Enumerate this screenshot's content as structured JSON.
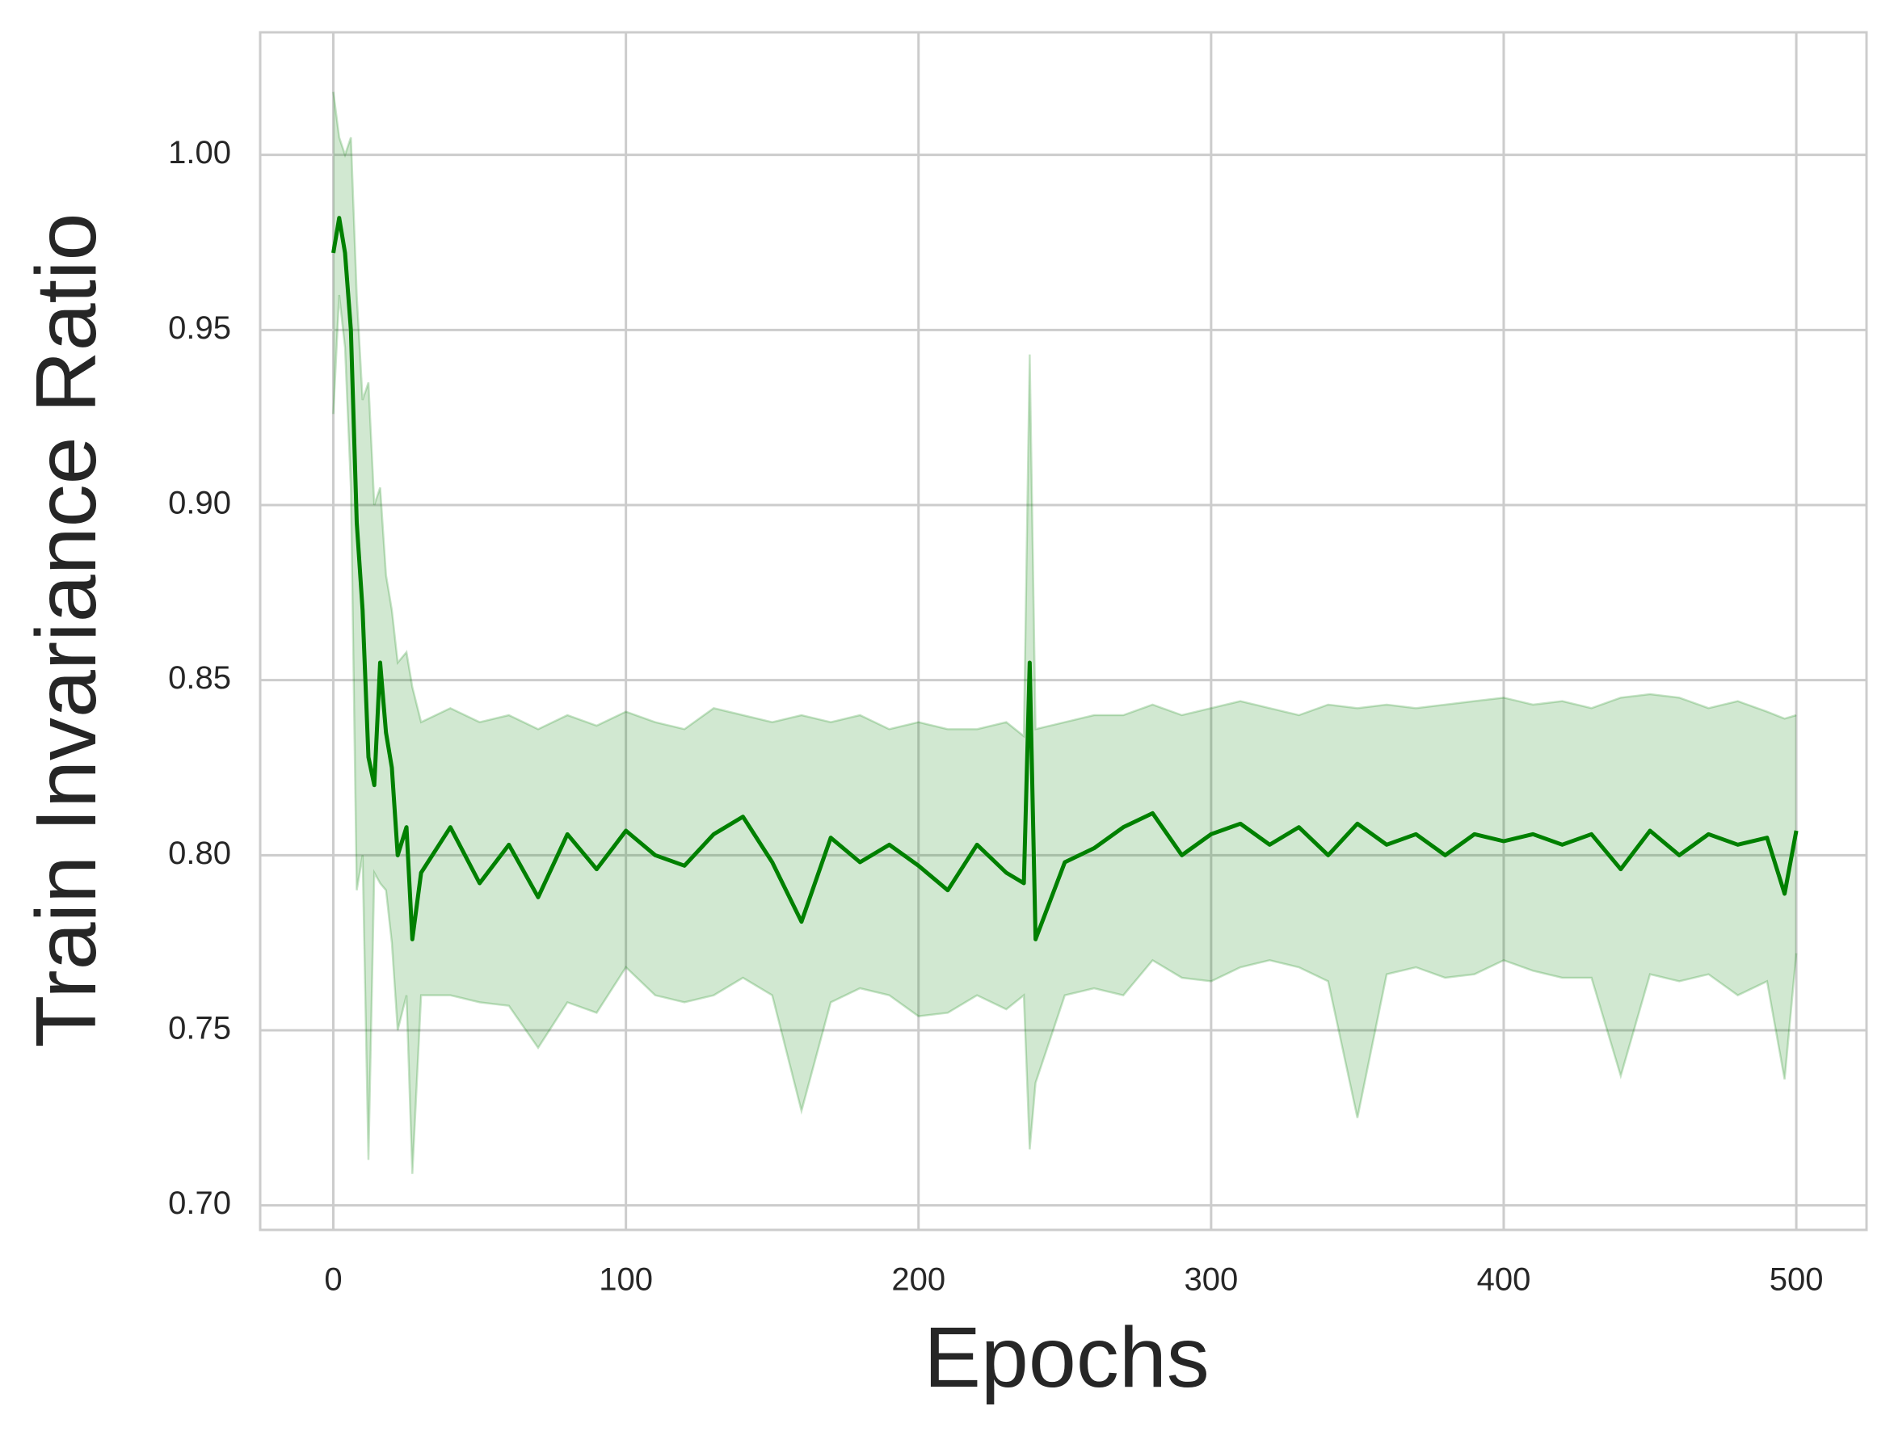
{
  "chart_data": {
    "type": "line",
    "xlabel": "Epochs",
    "ylabel": "Train Invariance Ratio",
    "x": [
      0,
      2,
      4,
      6,
      8,
      10,
      12,
      14,
      16,
      18,
      20,
      22,
      25,
      27,
      30,
      40,
      50,
      60,
      70,
      80,
      90,
      100,
      110,
      120,
      130,
      140,
      150,
      160,
      170,
      180,
      190,
      200,
      210,
      220,
      230,
      236,
      238,
      240,
      250,
      260,
      270,
      280,
      290,
      300,
      310,
      320,
      330,
      340,
      350,
      360,
      370,
      380,
      390,
      400,
      410,
      420,
      430,
      440,
      450,
      460,
      470,
      480,
      490,
      496,
      500
    ],
    "series": [
      {
        "color": "#008000",
        "values": [
          0.972,
          0.982,
          0.972,
          0.95,
          0.895,
          0.87,
          0.828,
          0.82,
          0.855,
          0.835,
          0.825,
          0.8,
          0.808,
          0.776,
          0.795,
          0.808,
          0.792,
          0.803,
          0.788,
          0.806,
          0.796,
          0.807,
          0.8,
          0.797,
          0.806,
          0.811,
          0.798,
          0.781,
          0.805,
          0.798,
          0.803,
          0.797,
          0.79,
          0.803,
          0.795,
          0.792,
          0.855,
          0.776,
          0.798,
          0.802,
          0.808,
          0.812,
          0.8,
          0.806,
          0.809,
          0.803,
          0.808,
          0.8,
          0.809,
          0.803,
          0.806,
          0.8,
          0.806,
          0.804,
          0.806,
          0.803,
          0.806,
          0.796,
          0.807,
          0.8,
          0.806,
          0.803,
          0.805,
          0.789,
          0.807
        ]
      }
    ],
    "band": {
      "color": "#008000",
      "upper": [
        1.018,
        1.005,
        1.0,
        1.005,
        0.96,
        0.93,
        0.935,
        0.9,
        0.905,
        0.88,
        0.87,
        0.855,
        0.858,
        0.848,
        0.838,
        0.842,
        0.838,
        0.84,
        0.836,
        0.84,
        0.837,
        0.841,
        0.838,
        0.836,
        0.842,
        0.84,
        0.838,
        0.84,
        0.838,
        0.84,
        0.836,
        0.838,
        0.836,
        0.836,
        0.838,
        0.834,
        0.943,
        0.836,
        0.838,
        0.84,
        0.84,
        0.843,
        0.84,
        0.842,
        0.844,
        0.842,
        0.84,
        0.843,
        0.842,
        0.843,
        0.842,
        0.843,
        0.844,
        0.845,
        0.843,
        0.844,
        0.842,
        0.845,
        0.846,
        0.845,
        0.842,
        0.844,
        0.841,
        0.839,
        0.84
      ],
      "lower": [
        0.926,
        0.96,
        0.945,
        0.905,
        0.79,
        0.8,
        0.713,
        0.795,
        0.792,
        0.79,
        0.775,
        0.75,
        0.76,
        0.709,
        0.76,
        0.76,
        0.758,
        0.757,
        0.745,
        0.758,
        0.755,
        0.768,
        0.76,
        0.758,
        0.76,
        0.765,
        0.76,
        0.727,
        0.758,
        0.762,
        0.76,
        0.754,
        0.755,
        0.76,
        0.756,
        0.76,
        0.716,
        0.735,
        0.76,
        0.762,
        0.76,
        0.77,
        0.765,
        0.764,
        0.768,
        0.77,
        0.768,
        0.764,
        0.725,
        0.766,
        0.768,
        0.765,
        0.766,
        0.77,
        0.767,
        0.765,
        0.765,
        0.737,
        0.766,
        0.764,
        0.766,
        0.76,
        0.764,
        0.736,
        0.772
      ]
    },
    "xlim": [
      -25,
      524
    ],
    "ylim": [
      0.693,
      1.035
    ],
    "xticks": [
      0,
      100,
      200,
      300,
      400,
      500
    ],
    "yticks": [
      {
        "value": 0.7,
        "label": "0.70"
      },
      {
        "value": 0.75,
        "label": "0.75"
      },
      {
        "value": 0.8,
        "label": "0.80"
      },
      {
        "value": 0.85,
        "label": "0.85"
      },
      {
        "value": 0.9,
        "label": "0.90"
      },
      {
        "value": 0.95,
        "label": "0.95"
      },
      {
        "value": 1.0,
        "label": "1.00"
      }
    ],
    "grid": true
  }
}
